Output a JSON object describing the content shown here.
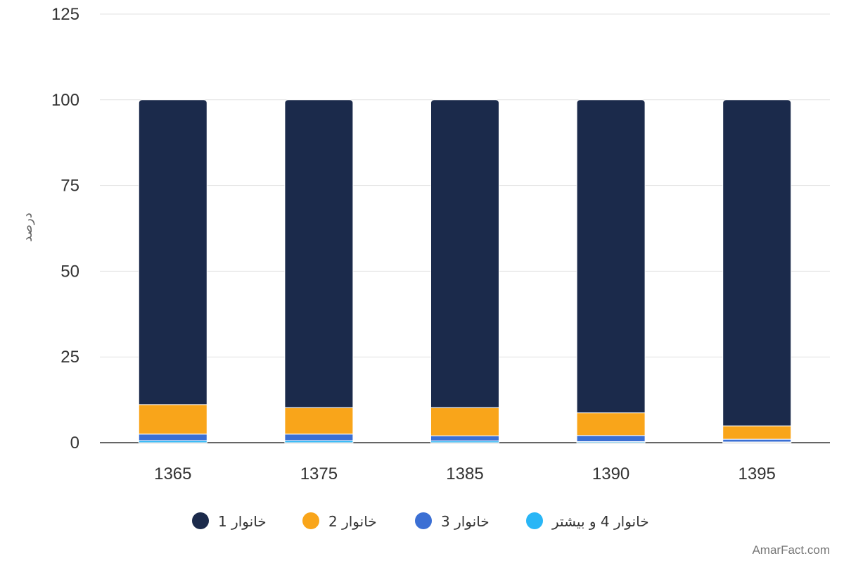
{
  "chart_data": {
    "type": "bar",
    "stacked": true,
    "categories": [
      "1365",
      "1375",
      "1385",
      "1390",
      "1395"
    ],
    "ylabel": "درصد",
    "xlabel": "",
    "ylim": [
      0,
      125
    ],
    "yticks": [
      0,
      25,
      50,
      75,
      100,
      125
    ],
    "grid": true,
    "legend_position": "bottom",
    "series": [
      {
        "name": "خانوار 4 و بیشتر",
        "color": "#29b6f6",
        "values": [
          0.6,
          0.6,
          0.5,
          0.3,
          0.2
        ]
      },
      {
        "name": "خانوار 3",
        "color": "#3b6fd4",
        "values": [
          1.9,
          1.9,
          1.5,
          1.8,
          0.8
        ]
      },
      {
        "name": "خانوار 2",
        "color": "#f9a51a",
        "values": [
          8.6,
          7.7,
          8.2,
          6.6,
          3.9
        ]
      },
      {
        "name": "خانوار 1",
        "color": "#1b2a4b",
        "values": [
          88.9,
          89.8,
          89.8,
          91.3,
          95.1
        ]
      }
    ],
    "legend_order": [
      "خانوار 1",
      "خانوار 2",
      "خانوار 3",
      "خانوار 4 و بیشتر"
    ]
  },
  "credit": "AmarFact.com"
}
